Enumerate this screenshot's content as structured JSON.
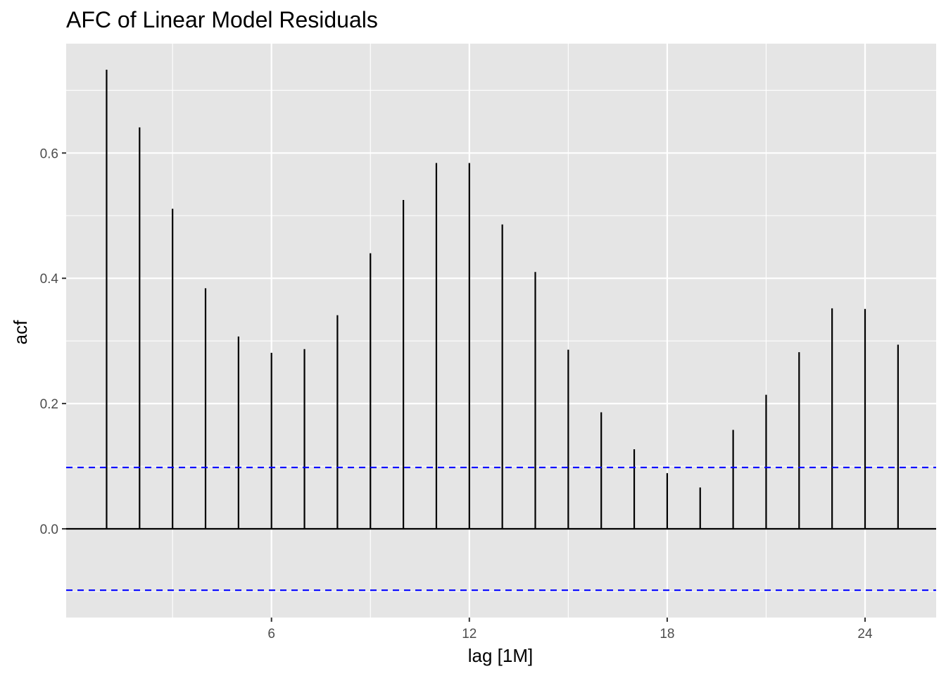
{
  "chart_data": {
    "type": "bar",
    "title": "AFC of Linear Model Residuals",
    "xlabel": "lag [1M]",
    "ylabel": "acf",
    "x": [
      1,
      2,
      3,
      4,
      5,
      6,
      7,
      8,
      9,
      10,
      11,
      12,
      13,
      14,
      15,
      16,
      17,
      18,
      19,
      20,
      21,
      22,
      23,
      24,
      25
    ],
    "values": [
      0.733,
      0.641,
      0.511,
      0.384,
      0.307,
      0.281,
      0.287,
      0.341,
      0.44,
      0.525,
      0.584,
      0.584,
      0.486,
      0.41,
      0.286,
      0.186,
      0.127,
      0.089,
      0.066,
      0.158,
      0.214,
      0.282,
      0.352,
      0.351,
      0.294
    ],
    "xticks": [
      6,
      12,
      18,
      24
    ],
    "yticks": [
      0.0,
      0.2,
      0.4,
      0.6
    ],
    "ytick_labels": [
      "0.0",
      "0.2",
      "0.4",
      "0.6"
    ],
    "xlim": [
      0,
      26
    ],
    "ylim": [
      -0.1,
      0.75
    ],
    "confidence_bound": 0.098,
    "grid": true,
    "colors": {
      "panel_background": "#e5e5e5",
      "grid": "#ffffff",
      "bars": "#000000",
      "confidence_line": "#0000ff"
    }
  }
}
